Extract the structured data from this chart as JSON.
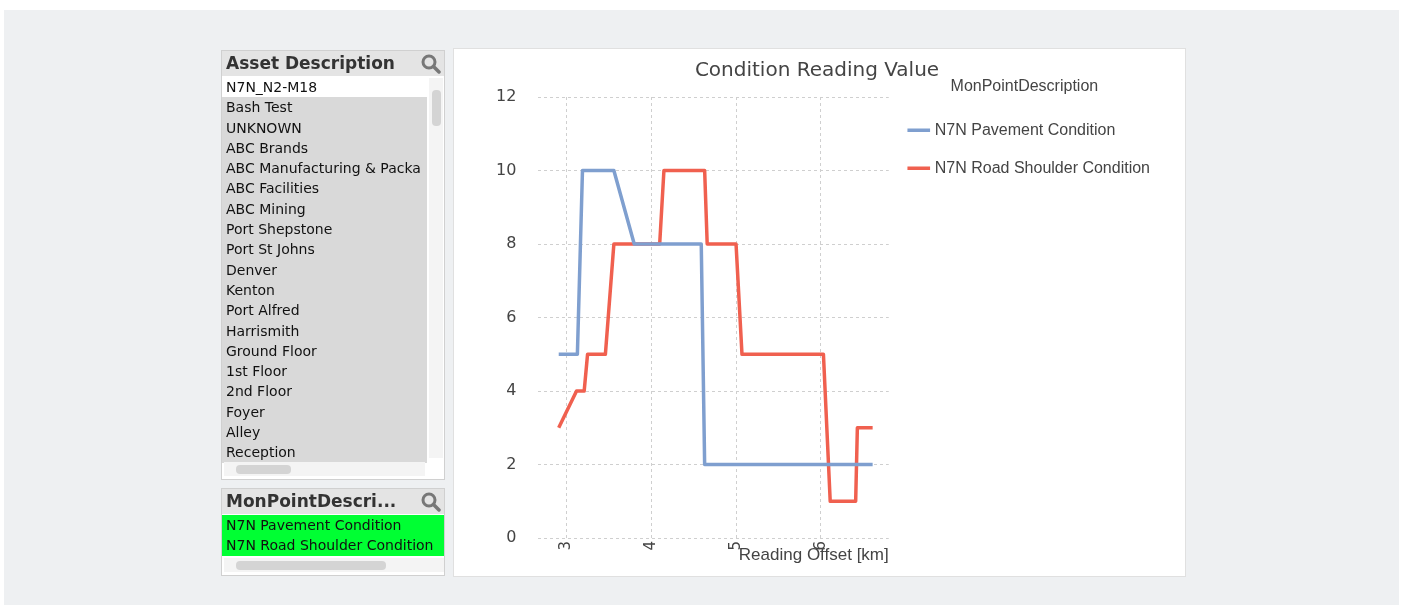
{
  "chart_data": [
    {
      "type": "other",
      "title": "Asset Description",
      "annotations": [
        "N7N_N2-M18",
        "Bash Test",
        "UNKNOWN",
        "ABC Brands",
        "ABC Manufacturing & Packa",
        "ABC Facilities",
        "ABC Mining",
        "Port Shepstone",
        "Port St Johns",
        "Denver",
        "Kenton",
        "Port Alfred",
        "Harrismith",
        "Ground Floor",
        "1st Floor",
        "2nd Floor",
        "Foyer",
        "Alley",
        "Reception"
      ],
      "colors": [
        "#ffffff",
        "#d9d9d9",
        "#d9d9d9",
        "#d9d9d9",
        "#d9d9d9",
        "#d9d9d9",
        "#d9d9d9",
        "#d9d9d9",
        "#d9d9d9",
        "#d9d9d9",
        "#d9d9d9",
        "#d9d9d9",
        "#d9d9d9",
        "#d9d9d9",
        "#d9d9d9",
        "#d9d9d9",
        "#d9d9d9",
        "#d9d9d9",
        "#d9d9d9"
      ]
    },
    {
      "type": "other",
      "title": "MonPointDescri...",
      "annotations": [
        "N7N Pavement Condition",
        "N7N Road Shoulder Condition"
      ],
      "colors": [
        "#00ff33",
        "#00ff33"
      ]
    },
    {
      "type": "line",
      "title": "Condition Reading Value",
      "xlabel": "Reading Offset [km]",
      "legend_title": "MonPointDescription",
      "legend": "top right",
      "grid": true,
      "marker": "none",
      "line_style": "solid",
      "xlim": [
        2.67,
        6.8
      ],
      "xticks": [
        3,
        4,
        5,
        6
      ],
      "ylim": [
        0,
        12
      ],
      "yticks": [
        0,
        2,
        4,
        6,
        8,
        10,
        12
      ],
      "series": [
        {
          "name": "N7N Pavement Condition",
          "color": "#7f9fcf",
          "x": [
            2.91,
            3.13,
            3.19,
            3.56,
            3.8,
            4.59,
            4.63,
            6.61
          ],
          "values": [
            5,
            5,
            10,
            10,
            8,
            8,
            2,
            2
          ]
        },
        {
          "name": "N7N Road Shoulder Condition",
          "color": "#f0604f",
          "x": [
            2.91,
            3.12,
            3.21,
            3.25,
            3.46,
            3.56,
            4.1,
            4.15,
            4.63,
            4.66,
            5.0,
            5.07,
            6.03,
            6.11,
            6.41,
            6.43,
            6.61
          ],
          "values": [
            3,
            4,
            4,
            5,
            5,
            8,
            8,
            10,
            10,
            8,
            8,
            5,
            5,
            1,
            1,
            3,
            3
          ]
        }
      ]
    }
  ]
}
